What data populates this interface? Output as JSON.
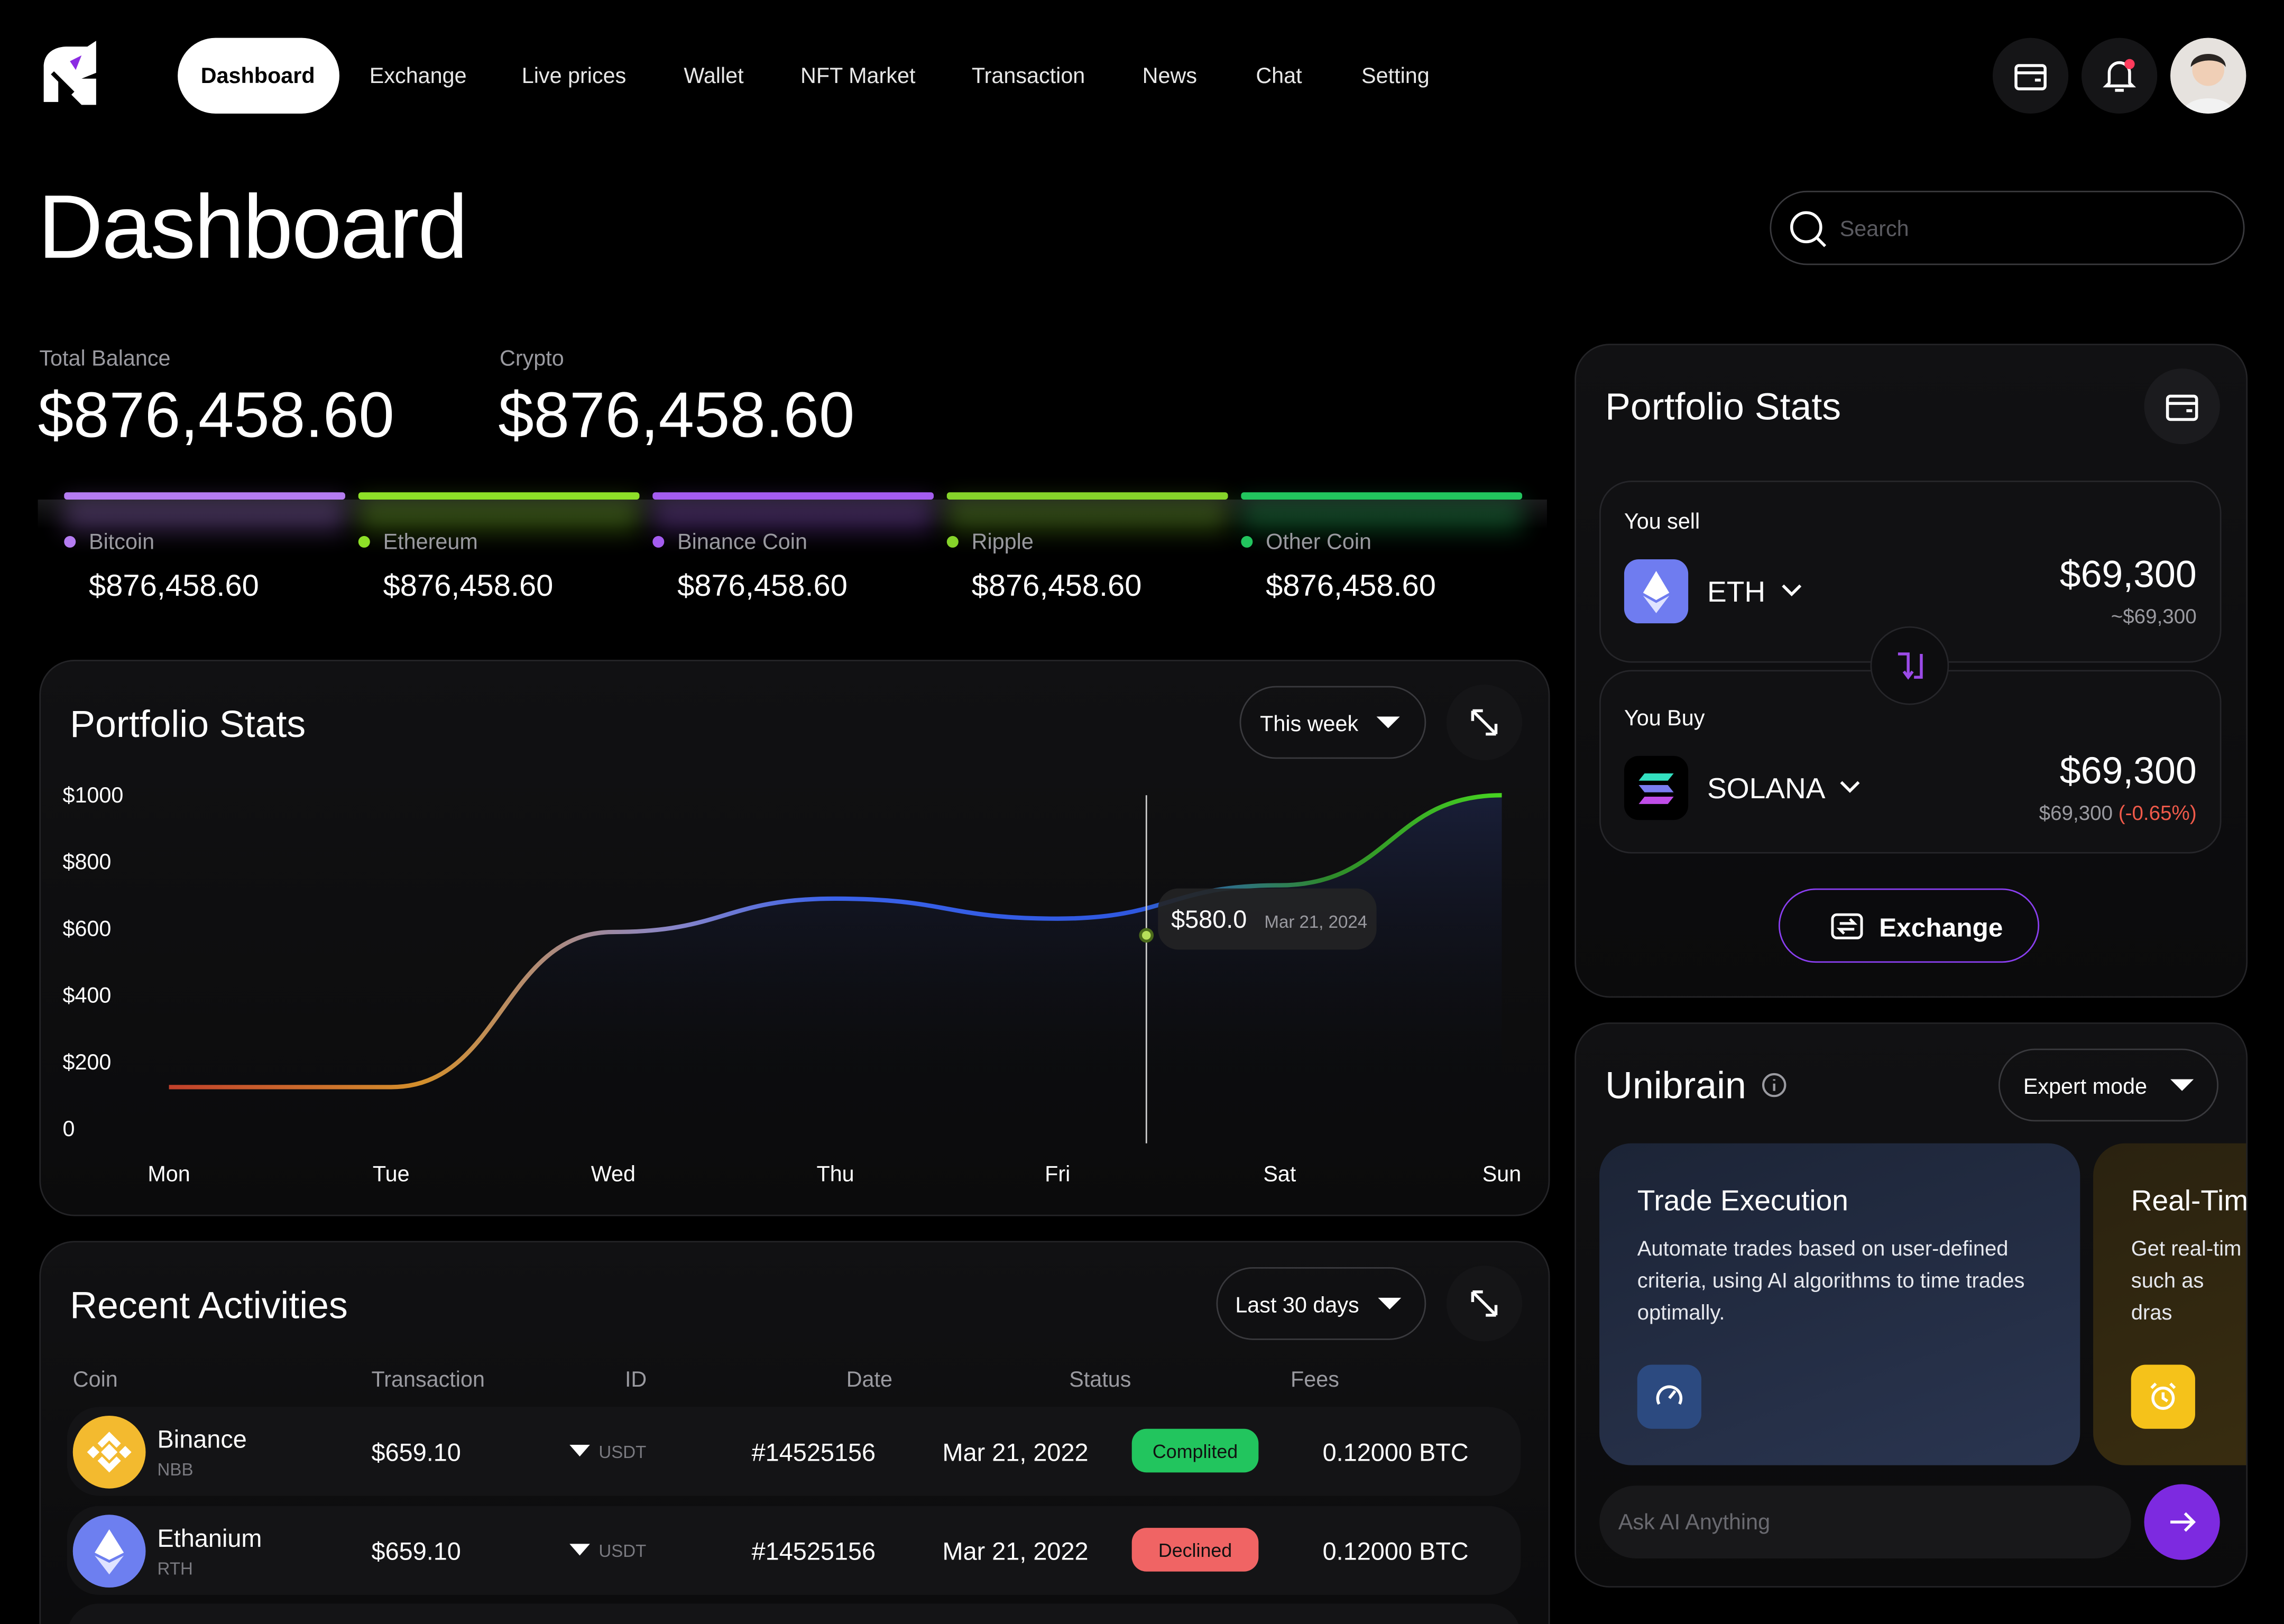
{
  "nav": {
    "items": [
      "Dashboard",
      "Exchange",
      "Live prices",
      "Wallet",
      "NFT Market",
      "Transaction",
      "News",
      "Chat",
      "Setting"
    ]
  },
  "page_title": "Dashboard",
  "search_placeholder": "Search",
  "balances": [
    {
      "label": "Total Balance",
      "value": "$876,458.60"
    },
    {
      "label": "Crypto",
      "value": "$876,458.60"
    }
  ],
  "coins": [
    {
      "name": "Bitcoin",
      "value": "$876,458.60",
      "color": "#b57cf2"
    },
    {
      "name": "Ethereum",
      "value": "$876,458.60",
      "color": "#8ee028"
    },
    {
      "name": "Binance Coin",
      "value": "$876,458.60",
      "color": "#a45cf0"
    },
    {
      "name": "Ripple",
      "value": "$876,458.60",
      "color": "#86d42a"
    },
    {
      "name": "Other Coin",
      "value": "$876,458.60",
      "color": "#22c55e"
    }
  ],
  "portfolio_chart": {
    "type": "line",
    "title": "Portfolio Stats",
    "period": "This week",
    "categories": [
      "Mon",
      "Tue",
      "Wed",
      "Thu",
      "Fri",
      "Sat",
      "Sun"
    ],
    "values": [
      125,
      125,
      590,
      690,
      630,
      730,
      1000
    ],
    "ylim": [
      0,
      1000
    ],
    "yticks": [
      0,
      {
        "value": 200,
        "label": "$200"
      },
      {
        "value": 400,
        "label": "$400"
      },
      {
        "value": 600,
        "label": "$600"
      },
      {
        "value": 800,
        "label": "$800"
      },
      {
        "value": 1000,
        "label": "$1000"
      }
    ],
    "tooltip": {
      "value": 580,
      "label": "$580.0",
      "date": "Mar 21, 2024"
    }
  },
  "activities": {
    "title": "Recent Activities",
    "period": "Last 30 days",
    "columns": [
      "Coin",
      "Transaction",
      "ID",
      "Date",
      "Status",
      "Fees"
    ],
    "rows": [
      {
        "coin": "Binance",
        "symbol": "NBB",
        "amount": "$659.10",
        "currency": "USDT",
        "id": "#14525156",
        "date": "Mar 21, 2022",
        "status": "Complited",
        "status_color": "#22c55e",
        "fees": "0.12000 BTC"
      },
      {
        "coin": "Ethanium",
        "symbol": "RTH",
        "amount": "$659.10",
        "currency": "USDT",
        "id": "#14525156",
        "date": "Mar 21, 2022",
        "status": "Declined",
        "status_color": "#f06464",
        "fees": "0.12000 BTC"
      }
    ]
  },
  "exchange": {
    "title": "Portfolio Stats",
    "sell": {
      "label": "You sell",
      "coin": "ETH",
      "amount": "$69,300",
      "approx": "~$69,300"
    },
    "buy": {
      "label": "You Buy",
      "coin": "SOLANA",
      "amount": "$69,300",
      "approx": "$69,300",
      "change": "(-0.65%)"
    },
    "button": "Exchange"
  },
  "unibrain": {
    "title": "Unibrain",
    "mode": "Expert mode",
    "cards": [
      {
        "title": "Trade Execution",
        "text": "Automate trades based on user-defined criteria, using AI algorithms to time trades optimally."
      },
      {
        "title": "Real-Tim",
        "text": "Get real-tim such as dras"
      }
    ],
    "input_placeholder": "Ask AI Anything"
  }
}
